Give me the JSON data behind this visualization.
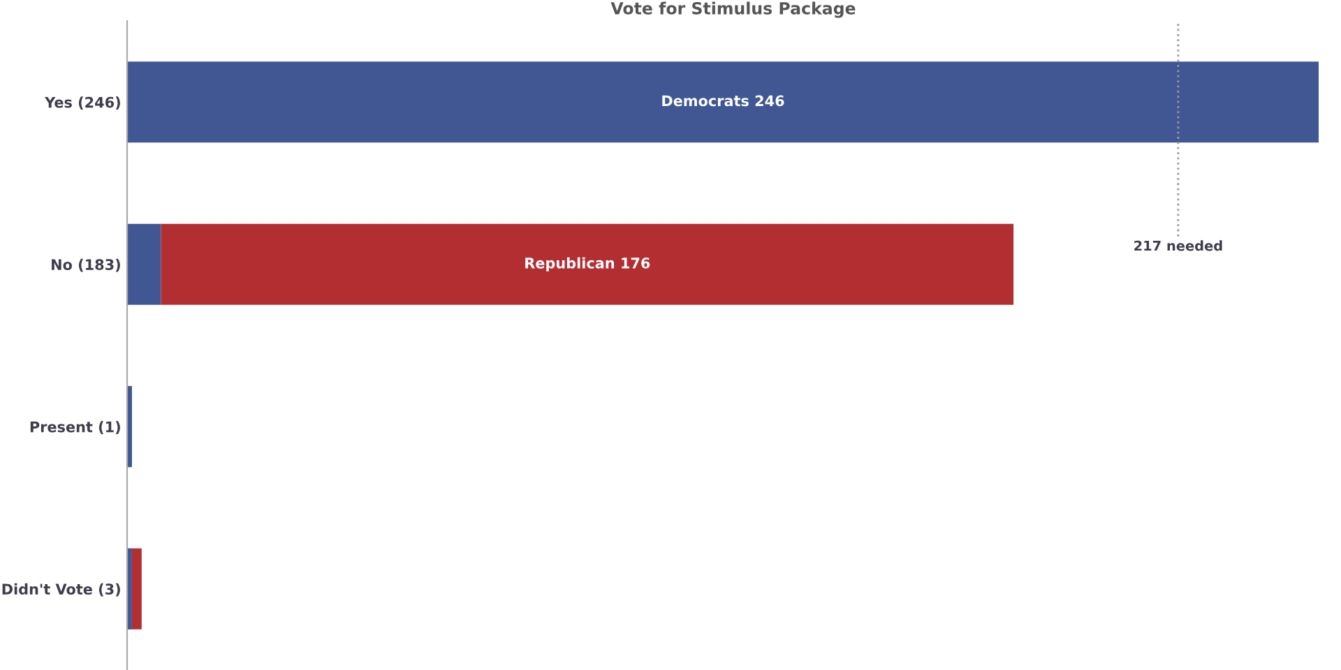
{
  "chart_data": {
    "type": "bar",
    "orientation": "horizontal",
    "stacked": true,
    "title": "Vote for Stimulus Package",
    "tick_labels": "y",
    "categories": [
      "Yes (246)",
      "No (183)",
      "Present (1)",
      "Didn't Vote (3)"
    ],
    "series": [
      {
        "color": "#415794",
        "values": [
          246,
          7,
          1,
          1
        ],
        "value_labels": [
          "Democrats 246",
          null,
          null,
          null
        ]
      },
      {
        "color": "#b22e31",
        "values": [
          0,
          176,
          0,
          2
        ],
        "value_labels": [
          null,
          "Republican 176",
          null,
          null
        ]
      }
    ],
    "ref_lines": [
      {
        "axis": "x",
        "value": 217,
        "label": "217 needed",
        "color": "#999999",
        "line_style": "dotted"
      }
    ]
  }
}
